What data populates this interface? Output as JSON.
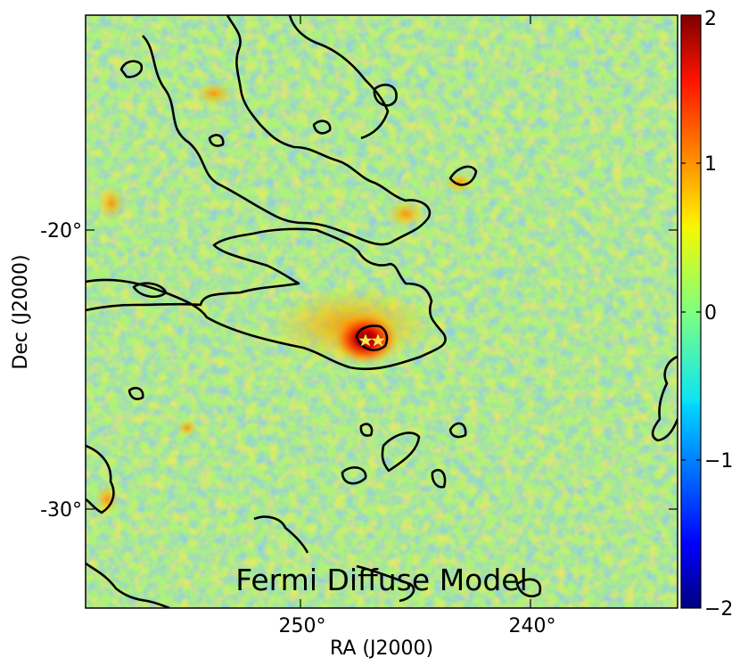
{
  "map": {
    "title": "Fermi Diffuse Model",
    "xlabel": "RA (J2000)",
    "ylabel": "Dec (J2000)",
    "x_ticks": [
      {
        "value": 250,
        "label": "250°"
      },
      {
        "value": 240,
        "label": "240°"
      }
    ],
    "y_ticks": [
      {
        "value": -20,
        "label": "-20°"
      },
      {
        "value": -30,
        "label": "-30°"
      }
    ],
    "ra_range": [
      259.6,
      234.6
    ],
    "dec_range": [
      -34.9,
      -9.6
    ],
    "colormap": "jet",
    "contour_color": "#000000",
    "markers": [
      "star",
      "star"
    ],
    "marker_color": "#f7e84b"
  },
  "colorbar": {
    "range": [
      -2,
      2
    ],
    "ticks": [
      {
        "value": 2,
        "label": "2"
      },
      {
        "value": 1,
        "label": "1"
      },
      {
        "value": 0,
        "label": "0"
      },
      {
        "value": -1,
        "label": "−1"
      },
      {
        "value": -2,
        "label": "−2"
      }
    ]
  }
}
